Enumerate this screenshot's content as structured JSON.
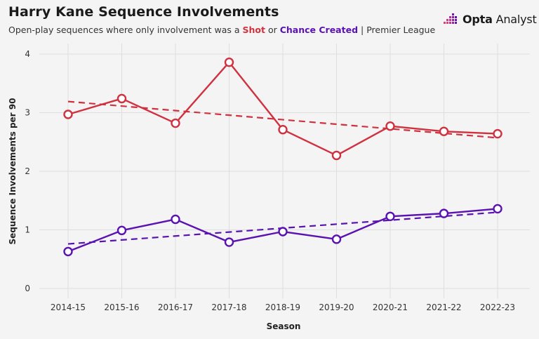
{
  "header": {
    "title": "Harry Kane Sequence Involvements",
    "subtitle_prefix": "Open-play sequences where only involvement was a ",
    "subtitle_shot": "Shot",
    "subtitle_or": " or ",
    "subtitle_chance": "Chance Created",
    "subtitle_suffix": " | Premier League"
  },
  "logo": {
    "brand": "Opta",
    "product": "Analyst"
  },
  "colors": {
    "shot": "#d0313f",
    "chance": "#5a12b0",
    "grid": "#dedede",
    "background": "#f4f4f4"
  },
  "chart_data": {
    "type": "line",
    "title": "Harry Kane Sequence Involvements",
    "xlabel": "Season",
    "ylabel": "Sequence Involvements per 90",
    "ylim": [
      0,
      4
    ],
    "yticks": [
      0,
      1,
      2,
      3,
      4
    ],
    "categories": [
      "2014-15",
      "2015-16",
      "2016-17",
      "2017-18",
      "2018-19",
      "2019-20",
      "2020-21",
      "2021-22",
      "2022-23"
    ],
    "series": [
      {
        "name": "Shot",
        "color": "#d0313f",
        "values": [
          2.97,
          3.24,
          2.82,
          3.86,
          2.71,
          2.27,
          2.77,
          2.68,
          2.64
        ],
        "trend": [
          3.19,
          2.57
        ]
      },
      {
        "name": "Chance Created",
        "color": "#5a12b0",
        "values": [
          0.63,
          0.99,
          1.18,
          0.79,
          0.97,
          0.84,
          1.23,
          1.28,
          1.36
        ],
        "trend": [
          0.76,
          1.3
        ]
      }
    ],
    "grid": true
  }
}
